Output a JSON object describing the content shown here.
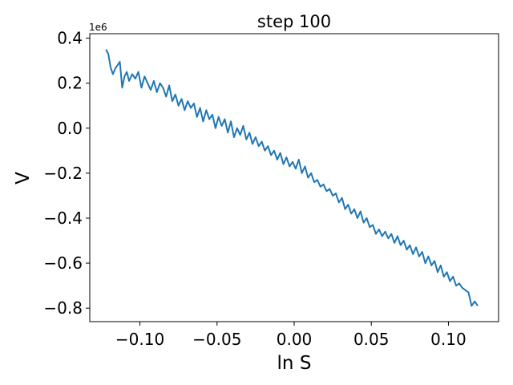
{
  "chart_data": {
    "type": "line",
    "title": "step 100",
    "xlabel": "ln S",
    "ylabel": "V",
    "y_offset_label": "1e6",
    "xlim": [
      -0.1325,
      0.1325
    ],
    "ylim": [
      -0.86,
      0.42
    ],
    "xticks": [
      -0.1,
      -0.05,
      0.0,
      0.05,
      0.1
    ],
    "xtick_labels": [
      "−0.10",
      "−0.05",
      "0.00",
      "0.05",
      "0.10"
    ],
    "yticks": [
      0.4,
      0.2,
      0.0,
      -0.2,
      -0.4,
      -0.6,
      -0.8
    ],
    "ytick_labels": [
      "0.4",
      "0.2",
      "0.0",
      "−0.2",
      "−0.4",
      "−0.6",
      "−0.8"
    ],
    "grid": false,
    "color": "#1f77b4",
    "series": [
      {
        "x": [
          -0.122,
          -0.1205,
          -0.119,
          -0.1175,
          -0.116,
          -0.1145,
          -0.113,
          -0.1115,
          -0.11,
          -0.1085,
          -0.107,
          -0.105,
          -0.103,
          -0.101,
          -0.099,
          -0.097,
          -0.095,
          -0.093,
          -0.091,
          -0.089,
          -0.087,
          -0.085,
          -0.083,
          -0.081,
          -0.079,
          -0.077,
          -0.075,
          -0.073,
          -0.071,
          -0.069,
          -0.067,
          -0.065,
          -0.063,
          -0.061,
          -0.059,
          -0.057,
          -0.055,
          -0.053,
          -0.051,
          -0.049,
          -0.047,
          -0.045,
          -0.043,
          -0.041,
          -0.039,
          -0.037,
          -0.035,
          -0.033,
          -0.031,
          -0.029,
          -0.027,
          -0.025,
          -0.023,
          -0.021,
          -0.019,
          -0.017,
          -0.015,
          -0.013,
          -0.011,
          -0.009,
          -0.007,
          -0.005,
          -0.003,
          -0.001,
          0.001,
          0.003,
          0.005,
          0.007,
          0.009,
          0.011,
          0.013,
          0.015,
          0.017,
          0.019,
          0.021,
          0.023,
          0.025,
          0.027,
          0.029,
          0.031,
          0.033,
          0.035,
          0.037,
          0.039,
          0.041,
          0.043,
          0.045,
          0.047,
          0.049,
          0.051,
          0.053,
          0.055,
          0.057,
          0.059,
          0.061,
          0.063,
          0.065,
          0.067,
          0.069,
          0.071,
          0.073,
          0.075,
          0.077,
          0.079,
          0.081,
          0.083,
          0.085,
          0.087,
          0.089,
          0.091,
          0.093,
          0.095,
          0.097,
          0.099,
          0.101,
          0.103,
          0.105,
          0.107,
          0.109,
          0.111,
          0.113,
          0.115,
          0.117,
          0.119
        ],
        "y": [
          0.35,
          0.33,
          0.27,
          0.24,
          0.265,
          0.28,
          0.295,
          0.18,
          0.23,
          0.25,
          0.21,
          0.24,
          0.22,
          0.25,
          0.18,
          0.23,
          0.2,
          0.17,
          0.21,
          0.16,
          0.2,
          0.18,
          0.14,
          0.19,
          0.12,
          0.15,
          0.1,
          0.13,
          0.08,
          0.12,
          0.09,
          0.11,
          0.05,
          0.09,
          0.03,
          0.08,
          0.04,
          0.06,
          0.0,
          0.05,
          0.01,
          0.04,
          -0.02,
          0.03,
          -0.04,
          0.0,
          -0.03,
          0.01,
          -0.05,
          -0.02,
          -0.07,
          -0.04,
          -0.08,
          -0.06,
          -0.1,
          -0.08,
          -0.12,
          -0.1,
          -0.14,
          -0.11,
          -0.16,
          -0.13,
          -0.17,
          -0.15,
          -0.18,
          -0.14,
          -0.2,
          -0.17,
          -0.22,
          -0.2,
          -0.24,
          -0.23,
          -0.26,
          -0.25,
          -0.28,
          -0.27,
          -0.3,
          -0.29,
          -0.33,
          -0.31,
          -0.36,
          -0.34,
          -0.38,
          -0.36,
          -0.4,
          -0.37,
          -0.42,
          -0.4,
          -0.44,
          -0.43,
          -0.47,
          -0.45,
          -0.48,
          -0.46,
          -0.49,
          -0.47,
          -0.51,
          -0.48,
          -0.52,
          -0.5,
          -0.54,
          -0.52,
          -0.56,
          -0.53,
          -0.57,
          -0.55,
          -0.6,
          -0.57,
          -0.61,
          -0.59,
          -0.64,
          -0.61,
          -0.66,
          -0.64,
          -0.68,
          -0.66,
          -0.7,
          -0.69,
          -0.71,
          -0.72,
          -0.73,
          -0.79,
          -0.77,
          -0.79
        ]
      }
    ]
  }
}
